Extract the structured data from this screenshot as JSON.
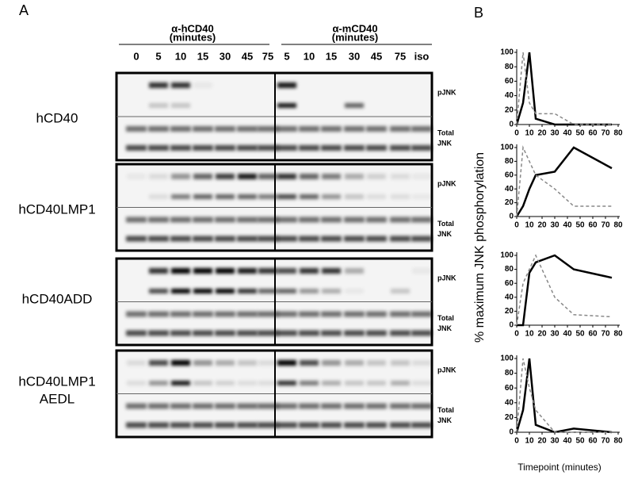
{
  "panel_a": {
    "label": "A",
    "groups": [
      {
        "antibody": "α-hCD40",
        "unit": "(minutes)",
        "lanes": [
          "0",
          "5",
          "10",
          "15",
          "30",
          "45",
          "75"
        ]
      },
      {
        "antibody": "α-mCD40",
        "unit": "(minutes)",
        "lanes": [
          "5",
          "10",
          "15",
          "30",
          "45",
          "75",
          "iso"
        ]
      }
    ],
    "rows": [
      {
        "name": [
          "hCD40"
        ],
        "pjnk": "pJNK",
        "total": [
          "Total",
          "JNK"
        ]
      },
      {
        "name": [
          "hCD40LMP1"
        ],
        "pjnk": "pJNK",
        "total": [
          "Total",
          "JNK"
        ]
      },
      {
        "name": [
          "hCD40ADD"
        ],
        "pjnk": "pJNK",
        "total": [
          "Total",
          "JNK"
        ]
      },
      {
        "name": [
          "hCD40LMP1",
          "AEDL"
        ],
        "pjnk": "pJNK",
        "total": [
          "Total",
          "JNK"
        ]
      }
    ]
  },
  "panel_b": {
    "label": "B",
    "y_label": "% maximum JNK phosphorylation",
    "x_label": "Timepoint (minutes)"
  },
  "chart_data": [
    {
      "type": "line",
      "x": [
        0,
        5,
        10,
        15,
        30,
        45,
        75
      ],
      "xlim": [
        0,
        80
      ],
      "ylim": [
        0,
        100
      ],
      "xticks": [
        0,
        10,
        20,
        30,
        40,
        50,
        60,
        70,
        80
      ],
      "yticks": [
        0,
        20,
        40,
        60,
        80,
        100
      ],
      "series": [
        {
          "color": "#000000",
          "dash": false,
          "values": [
            0,
            30,
            100,
            8,
            0,
            0,
            0
          ]
        },
        {
          "color": "#888888",
          "dash": true,
          "values": [
            0,
            100,
            30,
            15,
            15,
            0,
            0
          ]
        }
      ]
    },
    {
      "type": "line",
      "x": [
        0,
        5,
        10,
        15,
        30,
        45,
        75
      ],
      "xlim": [
        0,
        80
      ],
      "ylim": [
        0,
        100
      ],
      "xticks": [
        0,
        10,
        20,
        30,
        40,
        50,
        60,
        70,
        80
      ],
      "yticks": [
        0,
        20,
        40,
        60,
        80,
        100
      ],
      "series": [
        {
          "color": "#000000",
          "dash": false,
          "values": [
            0,
            15,
            40,
            60,
            65,
            100,
            70
          ]
        },
        {
          "color": "#888888",
          "dash": true,
          "values": [
            0,
            100,
            80,
            60,
            40,
            15,
            15
          ]
        }
      ]
    },
    {
      "type": "line",
      "x": [
        0,
        5,
        10,
        15,
        30,
        45,
        75
      ],
      "xlim": [
        0,
        80
      ],
      "ylim": [
        0,
        100
      ],
      "xticks": [
        0,
        10,
        20,
        30,
        40,
        50,
        60,
        70,
        80
      ],
      "yticks": [
        0,
        20,
        40,
        60,
        80,
        100
      ],
      "series": [
        {
          "color": "#000000",
          "dash": false,
          "values": [
            0,
            0,
            75,
            90,
            100,
            80,
            68
          ]
        },
        {
          "color": "#888888",
          "dash": true,
          "values": [
            0,
            60,
            80,
            100,
            40,
            15,
            12
          ]
        }
      ]
    },
    {
      "type": "line",
      "x": [
        0,
        5,
        10,
        15,
        30,
        45,
        75
      ],
      "xlim": [
        0,
        80
      ],
      "ylim": [
        0,
        100
      ],
      "xticks": [
        0,
        10,
        20,
        30,
        40,
        50,
        60,
        70,
        80
      ],
      "yticks": [
        0,
        20,
        40,
        60,
        80,
        100
      ],
      "series": [
        {
          "color": "#000000",
          "dash": false,
          "values": [
            0,
            30,
            100,
            10,
            0,
            5,
            0
          ]
        },
        {
          "color": "#888888",
          "dash": true,
          "values": [
            0,
            100,
            60,
            30,
            0,
            0,
            0
          ]
        }
      ]
    }
  ]
}
